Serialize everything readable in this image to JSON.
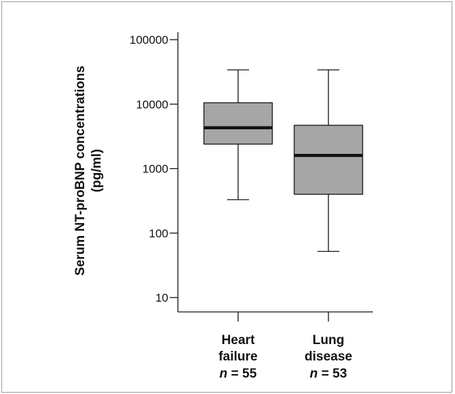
{
  "chart_data": {
    "type": "box",
    "ylabel_lines": [
      "Serum NT-proBNP concentrations",
      "(pg/ml)"
    ],
    "yscale": "log",
    "ylim": [
      6,
      140000
    ],
    "yticks": [
      {
        "value": 10,
        "label": "10"
      },
      {
        "value": 100,
        "label": "100"
      },
      {
        "value": 1000,
        "label": "1000"
      },
      {
        "value": 10000,
        "label": "10000"
      },
      {
        "value": 100000,
        "label": "100000"
      }
    ],
    "groups": [
      {
        "label_lines": [
          "Heart",
          "failure"
        ],
        "n_prefix": "n",
        "n_value": " = 55",
        "whisker_low": 330,
        "q1": 2400,
        "median": 4300,
        "q3": 10500,
        "whisker_high": 34000
      },
      {
        "label_lines": [
          "Lung",
          "disease"
        ],
        "n_prefix": "n",
        "n_value": " = 53",
        "whisker_low": 52,
        "q1": 400,
        "median": 1600,
        "q3": 4700,
        "whisker_high": 34000
      }
    ],
    "box_fill": "#a6a6a6",
    "line_color": "#111111",
    "grid": false
  }
}
